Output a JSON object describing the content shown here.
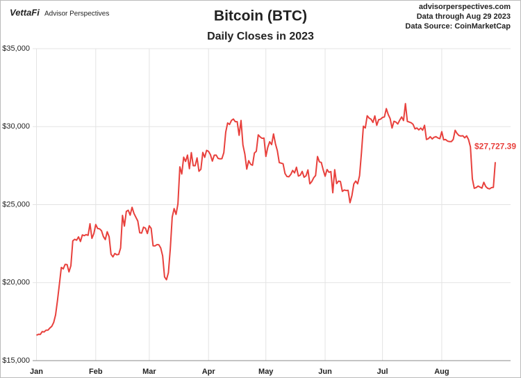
{
  "chart_data": {
    "type": "line",
    "brand": "VettaFi",
    "brand_sub": "Advisor Perspectives",
    "title": "Bitcoin (BTC)",
    "subtitle": "Daily Closes in 2023",
    "notes": [
      "advisorperspectives.com",
      "Data through Aug 29 2023",
      "Data Source: CoinMarketCap"
    ],
    "x": [
      1,
      2,
      3,
      4,
      5,
      6,
      7,
      8,
      9,
      10,
      11,
      12,
      13,
      14,
      15,
      16,
      17,
      18,
      19,
      20,
      21,
      22,
      23,
      24,
      25,
      26,
      27,
      28,
      29,
      30,
      31,
      32,
      33,
      34,
      35,
      36,
      37,
      38,
      39,
      40,
      41,
      42,
      43,
      44,
      45,
      46,
      47,
      48,
      49,
      50,
      51,
      52,
      53,
      54,
      55,
      56,
      57,
      58,
      59,
      60,
      61,
      62,
      63,
      64,
      65,
      66,
      67,
      68,
      69,
      70,
      71,
      72,
      73,
      74,
      75,
      76,
      77,
      78,
      79,
      80,
      81,
      82,
      83,
      84,
      85,
      86,
      87,
      88,
      89,
      90,
      91,
      92,
      93,
      94,
      95,
      96,
      97,
      98,
      99,
      100,
      101,
      102,
      103,
      104,
      105,
      106,
      107,
      108,
      109,
      110,
      111,
      112,
      113,
      114,
      115,
      116,
      117,
      118,
      119,
      120,
      121,
      122,
      123,
      124,
      125,
      126,
      127,
      128,
      129,
      130,
      131,
      132,
      133,
      134,
      135,
      136,
      137,
      138,
      139,
      140,
      141,
      142,
      143,
      144,
      145,
      146,
      147,
      148,
      149,
      150,
      151,
      152,
      153,
      154,
      155,
      156,
      157,
      158,
      159,
      160,
      161,
      162,
      163,
      164,
      165,
      166,
      167,
      168,
      169,
      170,
      171,
      172,
      173,
      174,
      175,
      176,
      177,
      178,
      179,
      180,
      181,
      182,
      183,
      184,
      185,
      186,
      187,
      188,
      189,
      190,
      191,
      192,
      193,
      194,
      195,
      196,
      197,
      198,
      199,
      200,
      201,
      202,
      203,
      204,
      205,
      206,
      207,
      208,
      209,
      210,
      211,
      212,
      213,
      214,
      215,
      216,
      217,
      218,
      219,
      220,
      221,
      222,
      223,
      224,
      225,
      226,
      227,
      228,
      229,
      230,
      231,
      232,
      233,
      234,
      235,
      236,
      237,
      238,
      239,
      240,
      241
    ],
    "series": [
      {
        "name": "Bitcoin (BTC)",
        "color": "#e8403c",
        "values": [
          16625,
          16688,
          16680,
          16863,
          16837,
          16951,
          16955,
          17091,
          17197,
          17446,
          17934,
          18869,
          19909,
          20977,
          20881,
          21170,
          21161,
          20688,
          21086,
          22677,
          22777,
          22721,
          22934,
          22637,
          23058,
          23010,
          23078,
          23031,
          23775,
          22840,
          23139,
          23724,
          23471,
          23449,
          23331,
          22955,
          22760,
          23264,
          22939,
          21819,
          21652,
          21870,
          21788,
          21808,
          22220,
          24307,
          23623,
          24565,
          24641,
          24328,
          24829,
          24437,
          24188,
          23947,
          23198,
          23175,
          23554,
          23492,
          23147,
          23646,
          23475,
          22362,
          22354,
          22436,
          22429,
          22219,
          21718,
          20363,
          20187,
          20633,
          22163,
          24197,
          24746,
          24375,
          25052,
          27423,
          26965,
          28038,
          27767,
          28175,
          27307,
          28333,
          27493,
          27494,
          27994,
          27139,
          27268,
          28348,
          28033,
          28478,
          28411,
          28199,
          27790,
          28169,
          28175,
          27963,
          27935,
          27948,
          28333,
          29653,
          30235,
          30139,
          30399,
          30485,
          30318,
          30315,
          29445,
          30397,
          28822,
          28245,
          27276,
          27817,
          27591,
          27525,
          28307,
          28422,
          29473,
          29340,
          29248,
          29268,
          28091,
          28680,
          29031,
          28847,
          29534,
          28905,
          28454,
          27694,
          27658,
          27621,
          27000,
          26804,
          26784,
          26931,
          27192,
          27036,
          27398,
          26833,
          26890,
          27130,
          26753,
          26851,
          27225,
          26334,
          26476,
          26719,
          26868,
          28085,
          27745,
          27702,
          27219,
          26819,
          27249,
          27075,
          27119,
          25760,
          27238,
          26345,
          26508,
          26480,
          25851,
          25940,
          25903,
          25918,
          25124,
          25576,
          26327,
          26510,
          26336,
          26851,
          28327,
          30027,
          29913,
          30695,
          30548,
          30480,
          30271,
          30689,
          30087,
          30445,
          30477,
          30590,
          30620,
          31156,
          30777,
          30514,
          29909,
          30346,
          30292,
          30171,
          30414,
          30620,
          30391,
          31477,
          30335,
          30295,
          30249,
          30146,
          29857,
          29913,
          29792,
          29908,
          29771,
          30084,
          29176,
          29228,
          29354,
          29210,
          29319,
          29357,
          29275,
          29230,
          29676,
          29152,
          29178,
          29074,
          29042,
          29041,
          29180,
          29766,
          29561,
          29430,
          29398,
          29416,
          29283,
          29409,
          29170,
          28701,
          26664,
          26049,
          26096,
          26189,
          26125,
          26057,
          26432,
          26164,
          26047,
          26009,
          26090,
          26106,
          27727.39
        ]
      }
    ],
    "last_value_label": "$27,727.39",
    "xlim": [
      -1,
      249
    ],
    "xticks": [
      {
        "value": 1,
        "label": "Jan"
      },
      {
        "value": 32,
        "label": "Feb"
      },
      {
        "value": 60,
        "label": "Mar"
      },
      {
        "value": 91,
        "label": "Apr"
      },
      {
        "value": 121,
        "label": "May"
      },
      {
        "value": 152,
        "label": "Jun"
      },
      {
        "value": 182,
        "label": "Jul"
      },
      {
        "value": 213,
        "label": "Aug"
      }
    ],
    "ylim": [
      15000,
      35000
    ],
    "yticks": [
      {
        "value": 15000,
        "label": "$15,000"
      },
      {
        "value": 20000,
        "label": "$20,000"
      },
      {
        "value": 25000,
        "label": "$25,000"
      },
      {
        "value": 30000,
        "label": "$30,000"
      },
      {
        "value": 35000,
        "label": "$35,000"
      }
    ],
    "grid": true
  }
}
